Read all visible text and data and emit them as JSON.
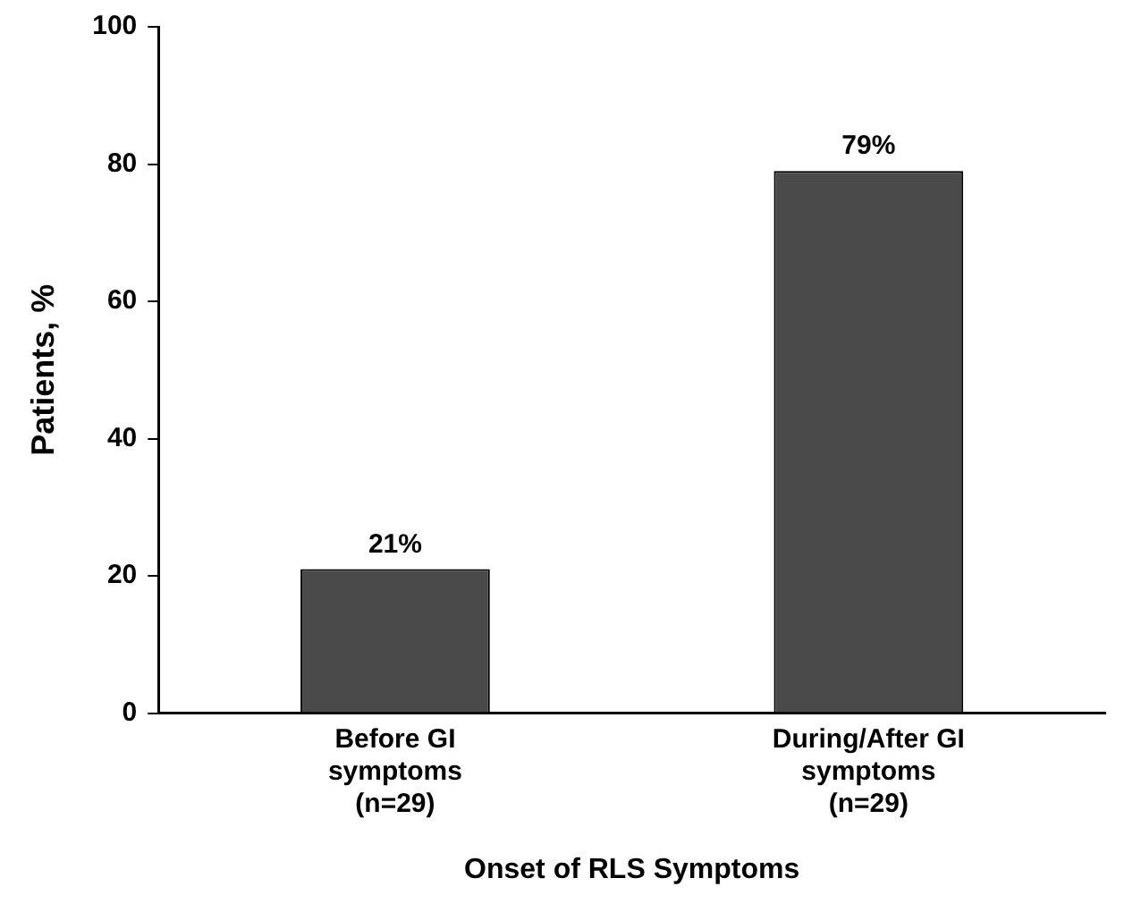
{
  "chart_data": {
    "type": "bar",
    "xlabel": "Onset of RLS Symptoms",
    "ylabel": "Patients, %",
    "categories": [
      "Before GI\nsymptoms\n(n=29)",
      "During/After GI\nsymptoms\n(n=29)"
    ],
    "values": [
      21,
      79
    ],
    "color": "#4a4a4a",
    "value_labels": [
      "21%",
      "79%"
    ],
    "ylim": [
      0,
      100
    ],
    "yticks": [
      0,
      20,
      40,
      60,
      80,
      100
    ],
    "grid": false,
    "legend": false
  }
}
